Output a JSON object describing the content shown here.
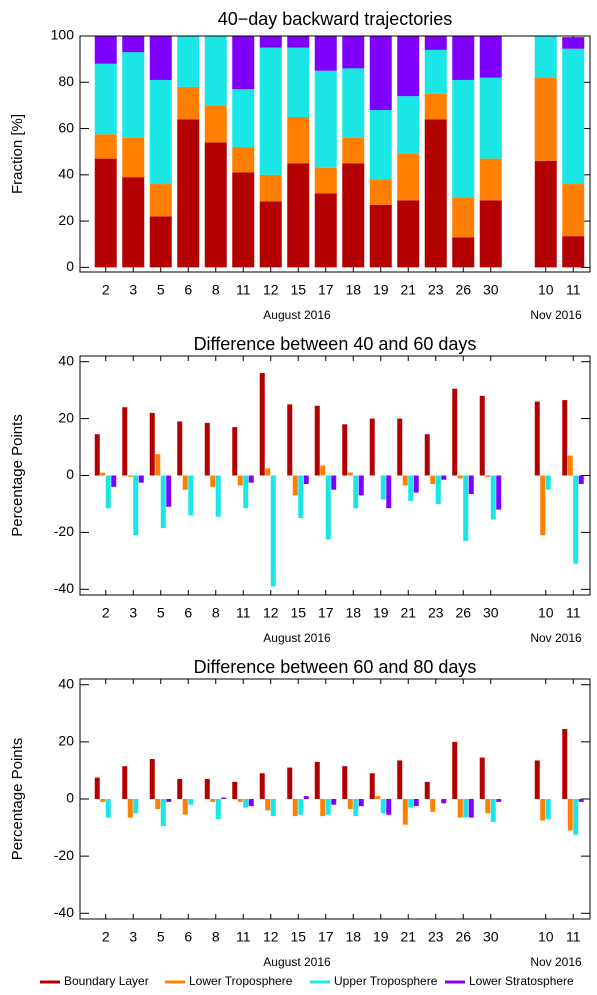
{
  "chart_data": [
    {
      "type": "bar",
      "stacked": true,
      "title": "40−day backward trajectories",
      "ylabel": "Fraction [%]",
      "categories": [
        "2",
        "3",
        "5",
        "6",
        "8",
        "11",
        "12",
        "15",
        "17",
        "18",
        "19",
        "21",
        "23",
        "26",
        "30",
        null,
        "10",
        "11"
      ],
      "group_labels": [
        "August 2016",
        "Nov 2016"
      ],
      "ylim": [
        -2,
        100
      ],
      "yticks": [
        0,
        20,
        40,
        60,
        80,
        100
      ],
      "grid": false,
      "series": [
        {
          "name": "Boundary Layer",
          "color": "#b30000",
          "values": [
            47,
            39,
            22,
            64,
            54,
            41,
            28.5,
            45,
            32,
            45,
            27,
            29,
            64,
            13,
            29,
            null,
            46,
            13.5
          ]
        },
        {
          "name": "Lower Troposphere",
          "color": "#ff8000",
          "values": [
            10.5,
            17,
            14,
            14,
            16,
            11,
            11.5,
            20,
            11,
            11,
            11,
            20,
            11,
            17,
            18,
            null,
            36,
            22.5
          ]
        },
        {
          "name": "Upper Troposphere",
          "color": "#1ae6e6",
          "values": [
            30.5,
            37,
            45,
            22,
            30,
            25,
            55,
            30,
            42,
            30,
            30,
            25,
            19,
            51,
            35,
            null,
            18,
            58.5
          ]
        },
        {
          "name": "Lower Stratosphere",
          "color": "#8000ff",
          "values": [
            12,
            7,
            19,
            0,
            0,
            23,
            5,
            5,
            15,
            14,
            32,
            26,
            6,
            19,
            18,
            null,
            0,
            5
          ]
        }
      ]
    },
    {
      "type": "bar",
      "stacked": false,
      "title": "Difference between 40 and 60 days",
      "ylabel": "Percentage Points",
      "categories": [
        "2",
        "3",
        "5",
        "6",
        "8",
        "11",
        "12",
        "15",
        "17",
        "18",
        "19",
        "21",
        "23",
        "26",
        "30",
        null,
        "10",
        "11"
      ],
      "group_labels": [
        "August 2016",
        "Nov 2016"
      ],
      "ylim": [
        -42,
        42
      ],
      "yticks": [
        -40,
        -20,
        0,
        20,
        40
      ],
      "grid": false,
      "series": [
        {
          "color": "#b30000",
          "values": [
            14.5,
            24,
            22,
            19,
            18.5,
            17,
            36,
            25,
            24.5,
            18,
            20,
            20,
            14.5,
            30.5,
            28,
            null,
            26,
            26.5
          ]
        },
        {
          "color": "#ff8000",
          "values": [
            1,
            -0.5,
            7.5,
            -5,
            -4,
            -3.5,
            2.5,
            -7,
            3.5,
            1,
            0,
            -3.5,
            -3,
            -1,
            -0.5,
            null,
            -21,
            7
          ]
        },
        {
          "color": "#1ae6e6",
          "values": [
            -11.5,
            -21,
            -18.5,
            -14,
            -14.5,
            -11.5,
            -39,
            -15,
            -22.5,
            -11.5,
            -8.5,
            -9,
            -10,
            -23,
            -15.5,
            null,
            -5,
            -31
          ]
        },
        {
          "color": "#8000ff",
          "values": [
            -4,
            -2.5,
            -11,
            0,
            0,
            -2.5,
            0,
            -3,
            -5,
            -7,
            -11.5,
            -6,
            -1.5,
            -6.5,
            -12,
            null,
            0,
            -3
          ]
        }
      ]
    },
    {
      "type": "bar",
      "stacked": false,
      "title": "Difference between 60 and 80 days",
      "ylabel": "Percentage Points",
      "categories": [
        "2",
        "3",
        "5",
        "6",
        "8",
        "11",
        "12",
        "15",
        "17",
        "18",
        "19",
        "21",
        "23",
        "26",
        "30",
        null,
        "10",
        "11"
      ],
      "group_labels": [
        "August 2016",
        "Nov 2016"
      ],
      "ylim": [
        -42,
        42
      ],
      "yticks": [
        -40,
        -20,
        0,
        20,
        40
      ],
      "grid": false,
      "series": [
        {
          "color": "#b30000",
          "values": [
            7.5,
            11.5,
            14,
            7,
            7,
            6,
            9,
            11,
            13,
            11.5,
            9,
            13.5,
            6,
            20,
            14.5,
            null,
            13.5,
            24.5
          ]
        },
        {
          "color": "#ff8000",
          "values": [
            -1,
            -6.5,
            -3.5,
            -5.5,
            -1,
            -1,
            -4,
            -6,
            -6,
            -3.5,
            1,
            -9,
            -4.5,
            -6.5,
            -5,
            null,
            -7.5,
            -11
          ]
        },
        {
          "color": "#1ae6e6",
          "values": [
            -6.5,
            -5,
            -9.5,
            -2,
            -7,
            -3,
            -6,
            -5.5,
            -5.5,
            -6,
            -5,
            -3,
            0,
            -6.5,
            -8,
            null,
            -7,
            -12.5
          ]
        },
        {
          "color": "#8000ff",
          "values": [
            0,
            0,
            -1,
            0,
            0.5,
            -2.5,
            0,
            1,
            -2,
            -2.5,
            -5.5,
            -2.5,
            -1.5,
            -6.5,
            -1,
            null,
            0,
            -1
          ]
        }
      ]
    }
  ]
}
